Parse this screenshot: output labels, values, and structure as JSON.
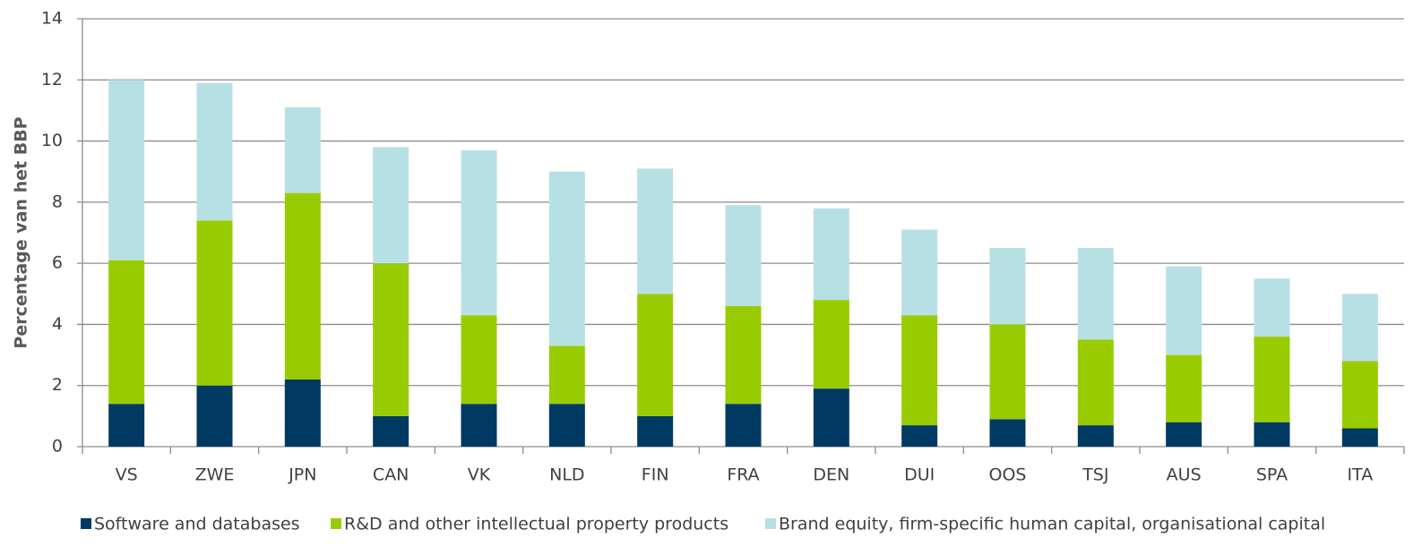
{
  "chart_data": {
    "type": "stacked_bar",
    "y_label": "Percentage van het BBP",
    "categories": [
      "VS",
      "ZWE",
      "JPN",
      "CAN",
      "VK",
      "NLD",
      "FIN",
      "FRA",
      "DEN",
      "DUI",
      "OOS",
      "TSJ",
      "AUS",
      "SPA",
      "ITA"
    ],
    "series": [
      {
        "name": "Software and databases",
        "color": "#003a63",
        "values": [
          1.4,
          2.0,
          2.2,
          1.0,
          1.4,
          1.4,
          1.0,
          1.4,
          1.9,
          0.7,
          0.9,
          0.7,
          0.8,
          0.8,
          0.6
        ]
      },
      {
        "name": "R&D and other intellectual property products",
        "color": "#99cc00",
        "values": [
          4.7,
          5.4,
          6.1,
          5.0,
          2.9,
          1.9,
          4.0,
          3.2,
          2.9,
          3.6,
          3.1,
          2.8,
          2.2,
          2.8,
          2.2
        ]
      },
      {
        "name": "Brand equity, firm-specific human capital, organisational capital",
        "color": "#b7e0e5",
        "values": [
          5.9,
          4.5,
          2.8,
          3.8,
          5.4,
          5.7,
          4.1,
          3.3,
          3.0,
          2.8,
          2.5,
          3.0,
          2.9,
          1.9,
          2.2
        ]
      }
    ],
    "ylim": [
      0,
      14
    ],
    "yticks": [
      0,
      2,
      4,
      6,
      8,
      10,
      12,
      14
    ],
    "grid": true,
    "legend": "bottom"
  }
}
